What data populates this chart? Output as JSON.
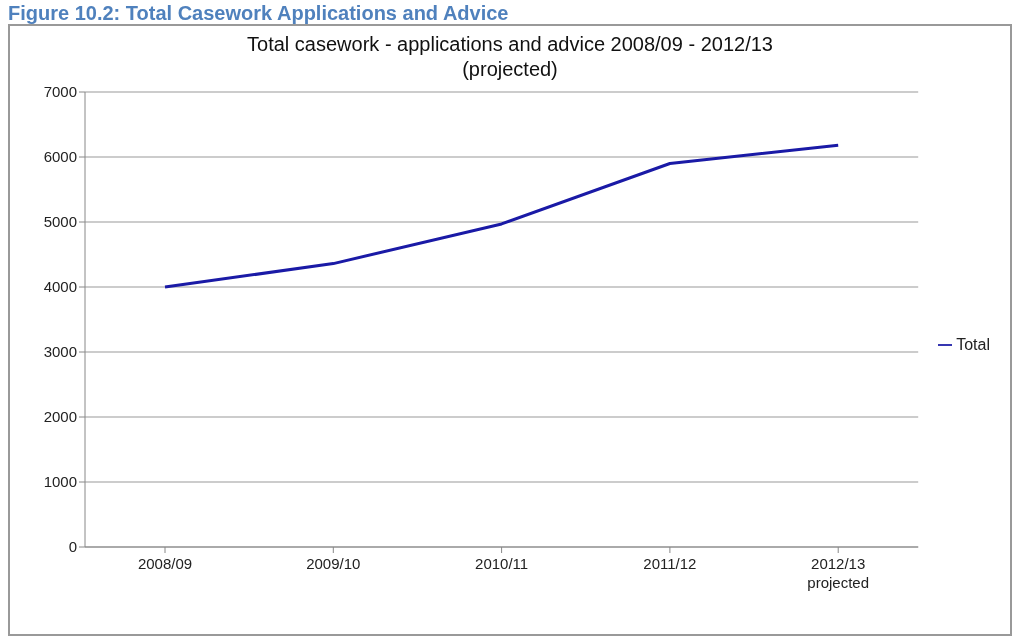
{
  "chart_data": {
    "type": "line",
    "title": "Total casework - applications and advice 2008/09 - 2012/13 (projected)",
    "annotations": [
      "Figure 10.2: Total Casework Applications and Advice"
    ],
    "categories": [
      "2008/09",
      "2009/10",
      "2010/11",
      "2011/12",
      "2012/13\nprojected"
    ],
    "series": [
      {
        "name": "Total",
        "color": "#1a1aa6",
        "values": [
          4000,
          4360,
          4970,
          5900,
          6180
        ]
      }
    ],
    "ylim": [
      0,
      7000
    ],
    "yticks": [
      0,
      1000,
      2000,
      3000,
      4000,
      5000,
      6000,
      7000
    ],
    "grid": "y",
    "legend": "right",
    "marker": "none",
    "line_style": "solid"
  }
}
